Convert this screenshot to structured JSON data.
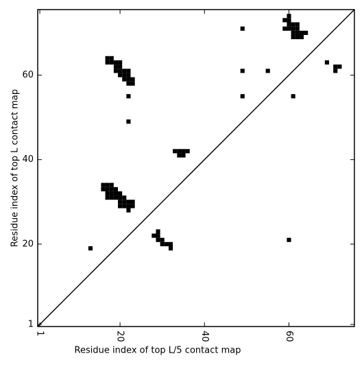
{
  "chart_data": {
    "type": "scatter",
    "marker": "square",
    "color": "#000000",
    "xlabel": "Residue index of top L/5 contact map",
    "ylabel": "Residue index of top L contact map",
    "xlim": [
      0.5,
      75.5
    ],
    "ylim": [
      0.5,
      75.5
    ],
    "xticks": [
      1,
      20,
      40,
      60
    ],
    "yticks": [
      1,
      20,
      40,
      60
    ],
    "diagonal": true,
    "series": [
      {
        "color": "#000000",
        "x": [
          49,
          60,
          59,
          60,
          60,
          61,
          62,
          59,
          60,
          61,
          62,
          61,
          62,
          63,
          64,
          61,
          62,
          63,
          49,
          55,
          69,
          71,
          72,
          71,
          49,
          61,
          22,
          22,
          17,
          18,
          17,
          18,
          19,
          20,
          19,
          20,
          19,
          20,
          21,
          22,
          20,
          21,
          22,
          21,
          22,
          23,
          22,
          23,
          33,
          34,
          35,
          36,
          34,
          35,
          16,
          17,
          18,
          16,
          17,
          18,
          19,
          17,
          18,
          19,
          20,
          17,
          18,
          19,
          20,
          21,
          20,
          21,
          22,
          23,
          20,
          21,
          22,
          23,
          22,
          13,
          29,
          28,
          29,
          29,
          30,
          30,
          31,
          32,
          32,
          60
        ],
        "values": [
          71,
          74,
          73,
          73,
          72,
          72,
          72,
          71,
          71,
          71,
          71,
          70,
          70,
          70,
          70,
          69,
          69,
          69,
          61,
          61,
          63,
          62,
          62,
          61,
          55,
          55,
          55,
          49,
          64,
          64,
          63,
          63,
          63,
          63,
          62,
          62,
          61,
          61,
          61,
          61,
          60,
          60,
          60,
          59,
          59,
          59,
          58,
          58,
          42,
          42,
          42,
          42,
          41,
          41,
          34,
          34,
          34,
          33,
          33,
          33,
          33,
          32,
          32,
          32,
          32,
          31,
          31,
          31,
          31,
          31,
          30,
          30,
          30,
          30,
          29,
          29,
          29,
          29,
          28,
          19,
          23,
          22,
          22,
          21,
          21,
          20,
          20,
          20,
          19,
          21
        ]
      }
    ]
  }
}
